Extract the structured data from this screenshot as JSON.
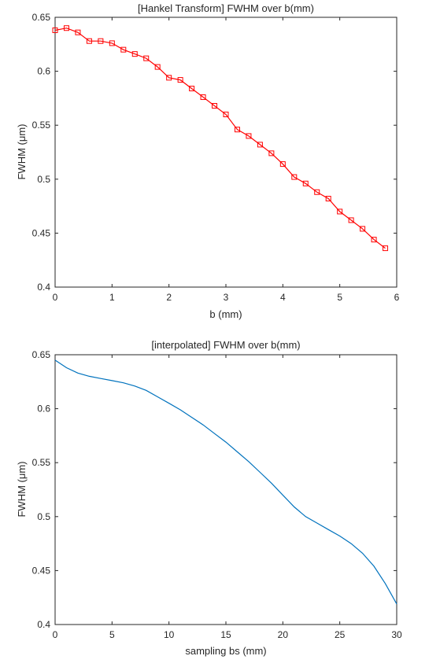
{
  "chart_data": [
    {
      "type": "line",
      "title": "[Hankel Transform] FWHM over b(mm)",
      "xlabel": "b (mm)",
      "ylabel": "FWHM (μm)",
      "xlim": [
        0,
        6
      ],
      "ylim": [
        0.4,
        0.65
      ],
      "xticks": [
        "0",
        "1",
        "2",
        "3",
        "4",
        "5",
        "6"
      ],
      "yticks": [
        "0.4",
        "0.45",
        "0.5",
        "0.55",
        "0.6",
        "0.65"
      ],
      "grid": false,
      "marker": "square",
      "color": "#ff0000",
      "x": [
        0,
        0.2,
        0.4,
        0.6,
        0.8,
        1.0,
        1.2,
        1.4,
        1.6,
        1.8,
        2.0,
        2.2,
        2.4,
        2.6,
        2.8,
        3.0,
        3.2,
        3.4,
        3.6,
        3.8,
        4.0,
        4.2,
        4.4,
        4.6,
        4.8,
        5.0,
        5.2,
        5.4,
        5.6,
        5.8
      ],
      "y": [
        0.638,
        0.64,
        0.636,
        0.628,
        0.628,
        0.626,
        0.62,
        0.616,
        0.612,
        0.604,
        0.594,
        0.592,
        0.584,
        0.576,
        0.568,
        0.56,
        0.546,
        0.54,
        0.532,
        0.524,
        0.514,
        0.502,
        0.496,
        0.488,
        0.482,
        0.47,
        0.462,
        0.454,
        0.444,
        0.436
      ]
    },
    {
      "type": "line",
      "title": "[interpolated] FWHM over b(mm)",
      "xlabel": "sampling bs (mm)",
      "ylabel": "FWHM (μm)",
      "xlim": [
        0,
        30
      ],
      "ylim": [
        0.4,
        0.65
      ],
      "xticks": [
        "0",
        "5",
        "10",
        "15",
        "20",
        "25",
        "30"
      ],
      "yticks": [
        "0.4",
        "0.45",
        "0.5",
        "0.55",
        "0.6",
        "0.65"
      ],
      "grid": false,
      "color": "#0072bd",
      "x": [
        0,
        1,
        2,
        3,
        4,
        5,
        6,
        7,
        8,
        9,
        10,
        11,
        12,
        13,
        14,
        15,
        16,
        17,
        18,
        19,
        20,
        21,
        22,
        23,
        24,
        25,
        26,
        27,
        28,
        29,
        30
      ],
      "y": [
        0.645,
        0.638,
        0.633,
        0.63,
        0.628,
        0.626,
        0.624,
        0.621,
        0.617,
        0.611,
        0.605,
        0.599,
        0.592,
        0.585,
        0.577,
        0.569,
        0.56,
        0.551,
        0.541,
        0.531,
        0.52,
        0.509,
        0.5,
        0.494,
        0.488,
        0.482,
        0.475,
        0.466,
        0.454,
        0.438,
        0.419
      ]
    }
  ]
}
